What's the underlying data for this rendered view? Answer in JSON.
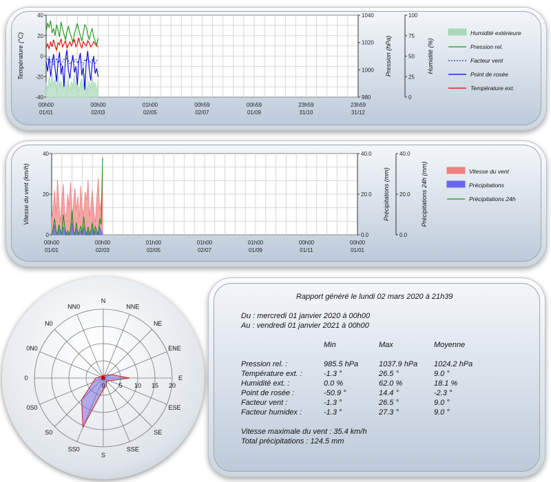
{
  "chart_data": [
    {
      "type": "line",
      "id": "weather",
      "yaxes": {
        "left": {
          "label": "Température (°C)",
          "ticks": [
            "40",
            "20",
            "0",
            "-20",
            "-40"
          ],
          "range": [
            -40,
            40
          ]
        },
        "right1": {
          "label": "Pression (hPa)",
          "ticks": [
            "1040",
            "1020",
            "1000",
            "980"
          ],
          "range": [
            980,
            1040
          ]
        },
        "right2": {
          "label": "Humidité (%)",
          "ticks": [
            "100",
            "75",
            "50",
            "25",
            "0"
          ],
          "range": [
            0,
            100
          ]
        }
      },
      "x_ticks": [
        [
          "00h00",
          "01/01"
        ],
        [
          "00h00",
          "02/03"
        ],
        [
          "01h00",
          "02/05"
        ],
        [
          "00h59",
          "02/07"
        ],
        [
          "00h59",
          "01/09"
        ],
        [
          "23h59",
          "31/10"
        ],
        [
          "23h59",
          "31/12"
        ]
      ],
      "legend_placement": "right",
      "series": [
        {
          "name": "Humidité extérieure",
          "color": "#a8d8b8",
          "style": "area",
          "values": [
            18,
            8,
            25,
            12,
            30,
            15,
            22,
            5,
            28,
            14,
            20,
            9,
            26,
            16,
            10,
            24,
            7,
            19,
            13,
            27,
            11,
            21,
            6,
            17,
            23,
            12,
            29,
            15,
            8,
            20,
            10,
            25,
            14,
            18,
            6,
            22
          ]
        },
        {
          "name": "Pression rel.",
          "color": "#119911",
          "style": "line",
          "values": [
            1028,
            1034,
            1031,
            1036,
            1027,
            1030,
            1025,
            1033,
            1029,
            1024,
            1035,
            1030,
            1026,
            1022,
            1028,
            1032,
            1027,
            1024,
            1020,
            1026,
            1030,
            1034,
            1029,
            1025,
            1021,
            1027,
            1033,
            1031,
            1026,
            1022,
            1027,
            1030,
            1024,
            1021,
            1018,
            1023
          ]
        },
        {
          "name": "Facteur vent",
          "color": "#1133cc",
          "style": "dashed",
          "values": [
            -2,
            -4,
            -1,
            -6,
            -3,
            -8,
            -5,
            -2,
            -7,
            -4,
            -9,
            -6,
            -3,
            -5,
            -1,
            -4,
            -8,
            -6,
            -2,
            -5,
            -3,
            -7,
            -4,
            -1,
            -6,
            -9,
            -3,
            -5,
            -2,
            -4,
            -7,
            -3,
            -6,
            -8,
            -4,
            -5
          ]
        },
        {
          "name": "Point de rosée",
          "color": "#0000dd",
          "style": "line",
          "values": [
            -5,
            -15,
            -2,
            -20,
            -8,
            2,
            -12,
            -25,
            -6,
            4,
            -18,
            -9,
            -30,
            -3,
            6,
            -14,
            -22,
            -7,
            1,
            -16,
            -10,
            -28,
            -4,
            3,
            -19,
            -11,
            -33,
            -6,
            5,
            -13,
            -24,
            -8,
            0,
            -17,
            -12,
            -20
          ]
        },
        {
          "name": "Température ext.",
          "color": "#dd0000",
          "style": "line",
          "values": [
            8,
            12,
            7,
            14,
            9,
            16,
            10,
            6,
            13,
            11,
            17,
            9,
            12,
            15,
            8,
            11,
            14,
            10,
            13,
            16,
            9,
            12,
            18,
            11,
            8,
            14,
            12,
            10,
            15,
            13,
            9,
            11,
            14,
            12,
            10,
            9
          ]
        }
      ]
    },
    {
      "type": "bar",
      "id": "wind-rain",
      "yaxes": {
        "left": {
          "label": "Vitesse du vent (km/h)",
          "ticks": [
            "40",
            "20",
            "0"
          ],
          "range": [
            0,
            40
          ]
        },
        "right1": {
          "label": "Précipitations (mm)",
          "ticks": [
            "40.0",
            "20.0",
            "0.0"
          ],
          "range": [
            0,
            40
          ]
        },
        "right2": {
          "label": "Précipitations 24h (mm)",
          "ticks": [
            "40.0",
            "20.0",
            "0.0"
          ],
          "range": [
            0,
            40
          ]
        }
      },
      "x_ticks": [
        [
          "00h00",
          "01/01"
        ],
        [
          "00h00",
          "02/03"
        ],
        [
          "01h00",
          "02/05"
        ],
        [
          "01h00",
          "02/07"
        ],
        [
          "01h00",
          "01/09"
        ],
        [
          "00h00",
          "01/11"
        ],
        [
          "00h00",
          "01/01"
        ]
      ],
      "legend_placement": "right",
      "series": [
        {
          "name": "Vitesse du vent",
          "color": "#f08080",
          "style": "area",
          "values": [
            8,
            12,
            22,
            10,
            27,
            15,
            6,
            18,
            25,
            11,
            9,
            20,
            14,
            26,
            7,
            16,
            23,
            12,
            19,
            8,
            24,
            13,
            10,
            21,
            17,
            27,
            9,
            15,
            22,
            11,
            6,
            18,
            28,
            12,
            16,
            30
          ]
        },
        {
          "name": "Précipitations",
          "color": "#6666ee",
          "style": "area",
          "values": [
            0,
            2,
            5,
            1,
            0,
            3,
            1,
            0,
            4,
            2,
            0,
            1,
            0,
            2,
            6,
            1,
            0,
            3,
            0,
            1,
            2,
            0,
            4,
            1,
            0,
            2,
            0,
            1,
            3,
            0,
            2,
            1,
            0,
            4,
            2,
            1
          ]
        },
        {
          "name": "Précipitations 24h",
          "color": "#119911",
          "style": "line",
          "values": [
            0,
            3,
            8,
            2,
            0,
            5,
            2,
            0,
            10,
            4,
            0,
            2,
            0,
            3,
            12,
            2,
            0,
            6,
            0,
            2,
            4,
            0,
            9,
            2,
            0,
            4,
            0,
            2,
            6,
            0,
            4,
            2,
            0,
            8,
            5,
            38
          ]
        }
      ]
    },
    {
      "type": "radar",
      "id": "wind-rose",
      "directions": [
        "N",
        "NNE",
        "NE",
        "ENE",
        "E",
        "ESE",
        "SE",
        "SSE",
        "S",
        "SS0",
        "S0",
        "0S0",
        "0",
        "0N0",
        "N0",
        "NN0"
      ],
      "ring_labels": [
        "0",
        "5",
        "10",
        "15",
        "20"
      ],
      "max": 20,
      "values": [
        0.8,
        0.9,
        1.1,
        2.6,
        7.7,
        2.1,
        1.3,
        2.4,
        3.3,
        15.5,
        8.9,
        3.3,
        2.2,
        0.9,
        0.8,
        0.7
      ]
    }
  ],
  "report": {
    "title": "Rapport généré le lundi 02 mars 2020 à 21h39",
    "from": "Du : mercredi 01 janvier 2020 à 00h00",
    "to": "Au : vendredi 01 janvier 2021 à 00h00",
    "col_min": "Min",
    "col_max": "Max",
    "col_avg": "Moyenne",
    "rows": [
      {
        "label": "Pression rel. :",
        "min": "985.5 hPa",
        "max": "1037.9 hPa",
        "avg": "1024.2 hPa"
      },
      {
        "label": "Température ext. :",
        "min": "-1.3 °",
        "max": "26.5 °",
        "avg": "9.0 °"
      },
      {
        "label": "Humidité ext. :",
        "min": "0.0 %",
        "max": "62.0 %",
        "avg": "18.1 %"
      },
      {
        "label": "Point de rosée :",
        "min": "-50.9 °",
        "max": "14.4 °",
        "avg": "-2.3 °"
      },
      {
        "label": "Facteur vent :",
        "min": "-1.3 °",
        "max": "26.5 °",
        "avg": "9.0 °"
      },
      {
        "label": "Facteur humidex :",
        "min": "-1.3 °",
        "max": "27.3 °",
        "avg": "9.0 °"
      }
    ],
    "wind_max": "Vitesse maximale du vent : 35.4 km/h",
    "rain_total": "Total précipitations : 124.5 mm"
  }
}
